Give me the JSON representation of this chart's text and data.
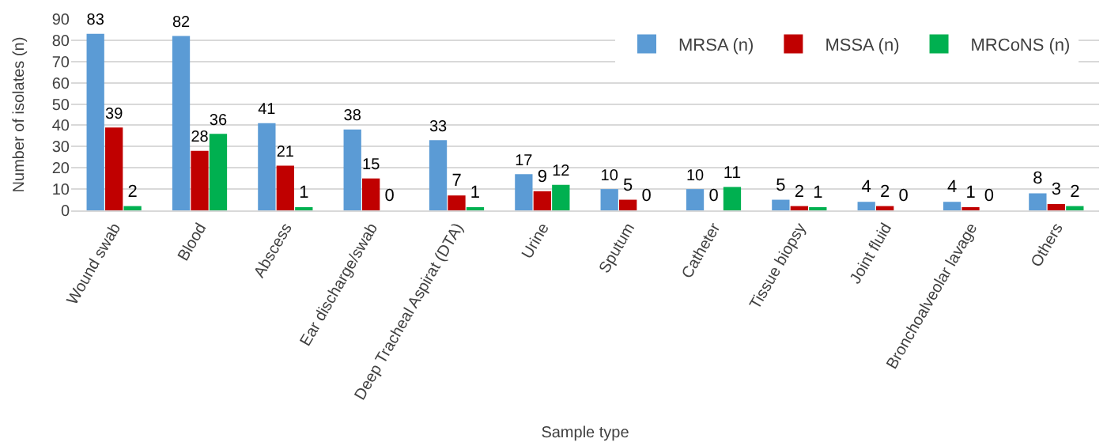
{
  "chart_data": {
    "type": "bar",
    "xlabel": "Sample type",
    "ylabel": "Number of isolates (n)",
    "categories": [
      "Wound swab",
      "Blood",
      "Abscess",
      "Ear discharge/swab",
      "Deep Tracheal Aspirat (DTA)",
      "Urine",
      "Sputum",
      "Catheter",
      "Tissue biopsy",
      "Joint fluid",
      "Bronchoalveolar lavage",
      "Others"
    ],
    "series": [
      {
        "name": "MRSA (n)",
        "color": "#5b9bd5",
        "values": [
          83,
          82,
          41,
          38,
          33,
          17,
          10,
          10,
          5,
          4,
          4,
          8
        ]
      },
      {
        "name": "MSSA (n)",
        "color": "#c00000",
        "values": [
          39,
          28,
          21,
          15,
          7,
          9,
          5,
          0,
          2,
          2,
          1,
          3
        ]
      },
      {
        "name": "MRCoNS (n)",
        "color": "#00b050",
        "values": [
          2,
          36,
          1,
          0,
          1,
          12,
          0,
          11,
          1,
          0,
          0,
          2
        ]
      }
    ],
    "ylim": [
      0,
      90
    ],
    "yticks": [
      0,
      10,
      20,
      30,
      40,
      50,
      60,
      70,
      80,
      90
    ],
    "grid": "y",
    "legend": "top right",
    "data_labels": true
  }
}
